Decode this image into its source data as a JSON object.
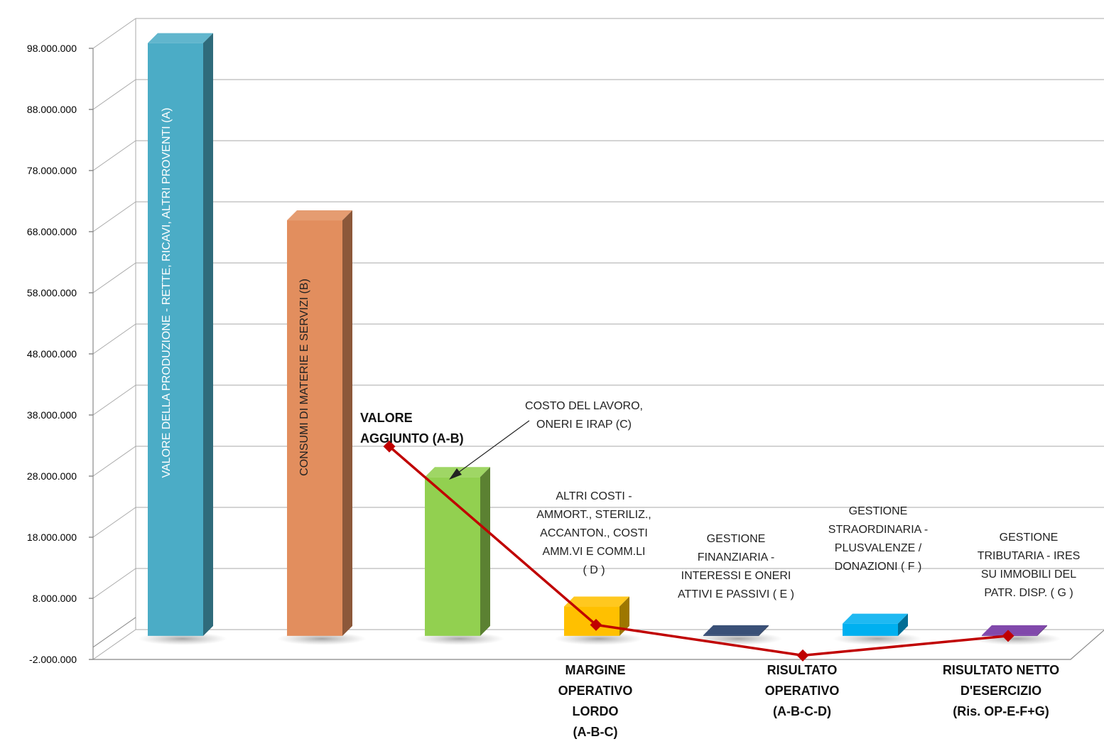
{
  "chart_data": {
    "type": "bar",
    "title": "",
    "xlabel": "",
    "ylabel": "",
    "ylim": [
      -2000000,
      98000000
    ],
    "ticks": [
      "98.000.000",
      "88.000.000",
      "78.000.000",
      "68.000.000",
      "58.000.000",
      "48.000.000",
      "38.000.000",
      "28.000.000",
      "18.000.000",
      "8.000.000",
      "-2.000.000"
    ],
    "tick_values": [
      98000000,
      88000000,
      78000000,
      68000000,
      58000000,
      48000000,
      38000000,
      28000000,
      18000000,
      8000000,
      -2000000
    ],
    "grid": true,
    "bars": [
      {
        "label": "VALORE DELLA PRODUZIONE - RETTE, RICAVI, ALTRI PROVENTI (A)",
        "value": 97000000,
        "color": "#4BACC6"
      },
      {
        "label": "CONSUMI DI MATERIE E SERVIZI (B)",
        "value": 68000000,
        "color": "#E28E5E"
      },
      {
        "label_lines": [
          "COSTO DEL LAVORO,",
          "ONERI E IRAP (C)"
        ],
        "value": 26000000,
        "color": "#92D050"
      },
      {
        "label_lines": [
          "ALTRI COSTI -",
          "AMMORT., STERILIZ.,",
          "ACCANTON., COSTI",
          "AMM.VI E COMM.LI",
          "( D )"
        ],
        "value": 4800000,
        "color": "#FFC000"
      },
      {
        "label_lines": [
          "GESTIONE",
          "FINANZIARIA -",
          "INTERESSI  E ONERI",
          "ATTIVI E PASSIVI ( E )"
        ],
        "value": 0,
        "color": "#1F3864"
      },
      {
        "label_lines": [
          "GESTIONE",
          "STRAORDINARIA -",
          "PLUSVALENZE /",
          "DONAZIONI ( F )"
        ],
        "value": 2000000,
        "color": "#00B0F0"
      },
      {
        "label_lines": [
          "GESTIONE",
          "TRIBUTARIA - IRES",
          "SU IMMOBILI DEL",
          "PATR. DISP. ( G )"
        ],
        "value": 0,
        "color": "#7030A0"
      }
    ],
    "line_series": {
      "color": "#C00000",
      "points": [
        {
          "label_lines": [
            "VALORE",
            "AGGIUNTO (A-B)"
          ],
          "value": 31000000
        },
        {
          "label_lines": [
            "MARGINE",
            "OPERATIVO",
            "LORDO",
            "(A-B-C)"
          ],
          "value": 1800000
        },
        {
          "label_lines": [
            "RISULTATO",
            "OPERATIVO",
            "(A-B-C-D)"
          ],
          "value": -3200000
        },
        {
          "label_lines": [
            "RISULTATO  NETTO",
            "D'ESERCIZIO",
            "(Ris. OP-E-F+G)"
          ],
          "value": 0
        }
      ]
    }
  }
}
